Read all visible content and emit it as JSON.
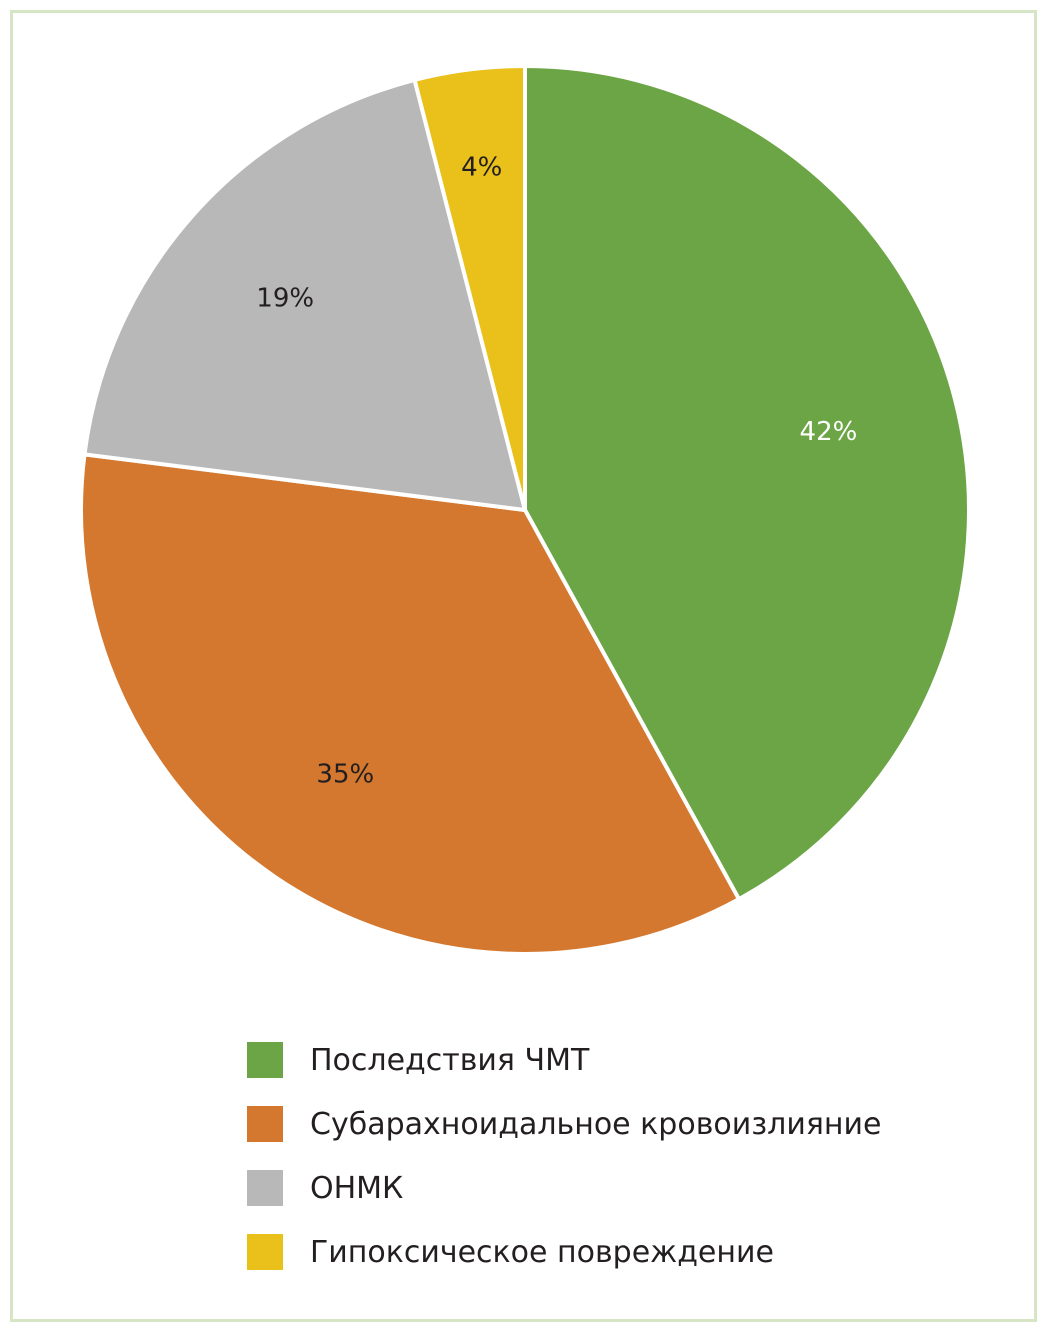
{
  "chart_data": {
    "type": "pie",
    "slices": [
      {
        "name": "Последствия ЧМТ",
        "value": 42,
        "label": "42%",
        "color": "#6ca545",
        "label_color": "#ffffff"
      },
      {
        "name": "Субарахноидальное кровоизлияние",
        "value": 35,
        "label": "35%",
        "color": "#d4782f",
        "label_color": "#231f20"
      },
      {
        "name": "ОНМК",
        "value": 19,
        "label": "19%",
        "color": "#b8b8b8",
        "label_color": "#231f20"
      },
      {
        "name": "Гипоксическое повреждение",
        "value": 4,
        "label": "4%",
        "color": "#eac01b",
        "label_color": "#231f20"
      }
    ],
    "start_angle": "12 o'clock",
    "direction": "clockwise",
    "legend_position": "bottom"
  },
  "legend": {
    "items": [
      {
        "label": "Последствия ЧМТ",
        "color": "#6ca545"
      },
      {
        "label": "Субарахноидальное кровоизлияние",
        "color": "#d4782f"
      },
      {
        "label": "ОНМК",
        "color": "#b8b8b8"
      },
      {
        "label": "Гипоксическое повреждение",
        "color": "#eac01b"
      }
    ]
  },
  "colors": {
    "frame_border": "#d6e5c6",
    "background": "#ffffff"
  }
}
